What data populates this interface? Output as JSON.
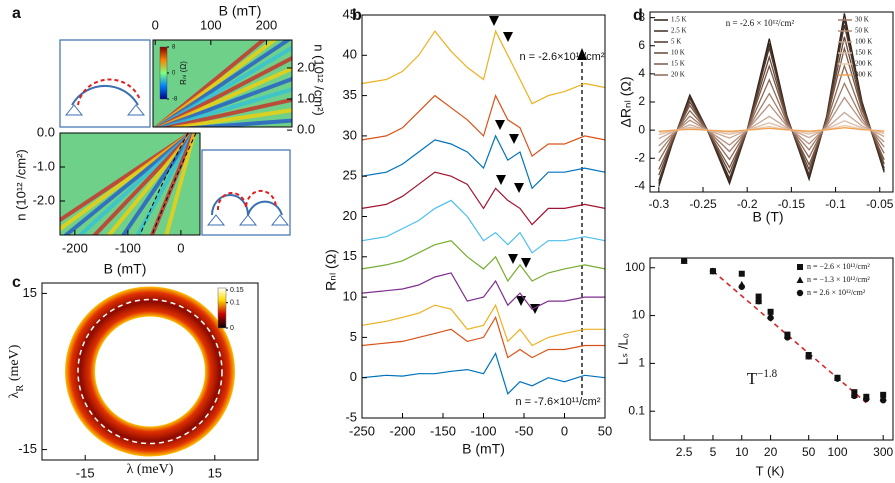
{
  "chart_data": [
    {
      "type": "heatmap",
      "panel_label": "a",
      "top": {
        "xlabel": "B (mT)",
        "xlim": [
          -4,
          246
        ],
        "xticks": [
          0,
          100,
          200
        ],
        "ylim": [
          0.1,
          2.9
        ],
        "yticks": [
          {
            "value": 0,
            "label": "0.0"
          },
          {
            "value": 1,
            "label": "1.0"
          },
          {
            "value": 2,
            "label": "2.0"
          }
        ],
        "ylabel": "n (10¹² /cm²)"
      },
      "bottom": {
        "xlabel": "B (mT)",
        "xlim": [
          -228,
          36
        ],
        "xticks": [
          -200,
          -100,
          0
        ],
        "ylim": [
          -3,
          0
        ],
        "yticks": [
          {
            "value": 0,
            "label": "0.0"
          },
          {
            "value": -1,
            "label": "-1.0"
          },
          {
            "value": -2,
            "label": "-2.0"
          }
        ],
        "ylabel": "n (10¹² /cm²)"
      },
      "colorbar_label": "Rₙₗ (Ω)",
      "colorbar_lim": [
        -8,
        8
      ],
      "colorbar_ticks": [
        8,
        0,
        -8
      ]
    },
    {
      "type": "line",
      "panel_label": "b",
      "xlabel": "B (mT)",
      "ylabel": "Rₙₗ (Ω)",
      "xlim": [
        -250,
        50
      ],
      "xticks": [
        -250,
        -200,
        -150,
        -100,
        -50,
        0,
        50
      ],
      "ylim": [
        -5,
        45
      ],
      "yticks": [
        -5,
        0,
        5,
        10,
        15,
        20,
        25,
        30,
        35,
        40,
        45
      ],
      "annotations": [
        "n = -2.6×10¹²/cm²",
        "n = -7.6×10¹¹/cm²"
      ],
      "x": [
        -250,
        -220,
        -200,
        -180,
        -160,
        -140,
        -120,
        -100,
        -85,
        -70,
        -55,
        -40,
        -20,
        0,
        25,
        50
      ],
      "series": [
        {
          "color": "#0072bd",
          "values": [
            0,
            0.3,
            0.2,
            0.5,
            0.5,
            0.8,
            1,
            0.5,
            3,
            -2,
            -0.5,
            -1,
            0,
            -0.5,
            0.3,
            0
          ]
        },
        {
          "color": "#d95319",
          "values": [
            4,
            4.3,
            4.5,
            5,
            5.5,
            6,
            4.5,
            5,
            7.5,
            2.5,
            3.5,
            2.5,
            3.5,
            3.5,
            4,
            4
          ]
        },
        {
          "color": "#edb120",
          "values": [
            6.5,
            7,
            7.5,
            8,
            9,
            8.5,
            6,
            6.5,
            9,
            4.5,
            6,
            4,
            5,
            5.5,
            6,
            6
          ]
        },
        {
          "color": "#7e2f8e",
          "values": [
            10.5,
            10.8,
            11,
            11.5,
            12.5,
            13,
            9.5,
            10,
            12,
            9,
            10.5,
            8.5,
            9.5,
            9.5,
            10,
            10
          ]
        },
        {
          "color": "#77ac30",
          "values": [
            13.5,
            14,
            14.5,
            15.5,
            16.5,
            17,
            15,
            13.5,
            15,
            12,
            14,
            12,
            13,
            13.5,
            14,
            13.5
          ]
        },
        {
          "color": "#4dbeee",
          "values": [
            17,
            17.5,
            18.5,
            19.5,
            21,
            22,
            20,
            17,
            18,
            16.5,
            18,
            15.5,
            17,
            17,
            17.5,
            17
          ]
        },
        {
          "color": "#a2142f",
          "values": [
            21,
            21.5,
            22.5,
            24,
            25.5,
            25,
            24,
            21,
            23.5,
            22,
            21,
            19,
            21,
            21,
            21.5,
            21
          ]
        },
        {
          "color": "#0072bd",
          "values": [
            25,
            25.5,
            26.5,
            28,
            29.5,
            29,
            28,
            26,
            30,
            27,
            28,
            23.5,
            25.5,
            25.5,
            26,
            25.5
          ]
        },
        {
          "color": "#d95319",
          "values": [
            29.5,
            30,
            31,
            33,
            35,
            33.5,
            32,
            30,
            35,
            32,
            31,
            27.5,
            29,
            29,
            30,
            29.5
          ]
        },
        {
          "color": "#edb120",
          "values": [
            36.5,
            37,
            38,
            40,
            43,
            40.5,
            38.5,
            37,
            43,
            40,
            37,
            34,
            35,
            35.5,
            36.5,
            36
          ]
        }
      ]
    },
    {
      "type": "heatmap",
      "panel_label": "c",
      "xlabel": "λ (meV)",
      "ylabel": {
        "text": "λ",
        "sub": "R",
        "tail": " (meV)"
      },
      "xlim": [
        -25,
        25
      ],
      "xticks": [
        -15,
        15
      ],
      "ylim": [
        -17,
        17
      ],
      "yticks": [
        -15,
        15
      ],
      "colorbar_lim": [
        0,
        0.15
      ],
      "colorbar_ticks": [
        0.15,
        0.1,
        0
      ]
    },
    {
      "type": "line",
      "panel_label": "d",
      "xlabel": "B (T)",
      "ylabel": "ΔRₙₗ (Ω)",
      "annotation": "n = -2.6 × 10¹²/cm²",
      "xlim": [
        -0.31,
        -0.035
      ],
      "xticks": [
        -0.3,
        -0.25,
        -0.2,
        -0.15,
        -0.1,
        -0.05
      ],
      "ylim": [
        -4.4,
        8.4
      ],
      "yticks": [
        -4,
        -2,
        0,
        2,
        4,
        6,
        8
      ],
      "x": [
        -0.3,
        -0.285,
        -0.265,
        -0.245,
        -0.22,
        -0.2,
        -0.175,
        -0.155,
        -0.13,
        -0.11,
        -0.09,
        -0.07,
        -0.045
      ],
      "series": [
        {
          "name": "1.5 K",
          "color": "#2e2119",
          "values": [
            -4,
            -1,
            2.5,
            0,
            -3.8,
            0,
            6.5,
            1,
            -3.5,
            1,
            8.3,
            2,
            -3
          ]
        },
        {
          "name": "2.5 K",
          "color": "#3f2e23",
          "values": [
            -3.8,
            -0.95,
            2.38,
            0,
            -3.61,
            0,
            6.18,
            0.95,
            -3.33,
            0.95,
            7.89,
            1.9,
            -2.85
          ]
        },
        {
          "name": "5 K",
          "color": "#51392c",
          "values": [
            -3.6,
            -0.9,
            2.25,
            0,
            -3.42,
            0,
            5.85,
            0.9,
            -3.15,
            0.9,
            7.47,
            1.8,
            -2.7
          ]
        },
        {
          "name": "10 K",
          "color": "#654737",
          "values": [
            -3.2,
            -0.8,
            2,
            0,
            -3.04,
            0,
            5.2,
            0.8,
            -2.8,
            0.8,
            6.64,
            1.6,
            -2.4
          ]
        },
        {
          "name": "15 K",
          "color": "#7a5845",
          "values": [
            -2.8,
            -0.7,
            1.75,
            0,
            -2.66,
            0,
            4.55,
            0.7,
            -2.45,
            0.7,
            5.81,
            1.4,
            -2.1
          ]
        },
        {
          "name": "20 K",
          "color": "#8d6955",
          "values": [
            -2.2,
            -0.55,
            1.38,
            0,
            -2.09,
            0,
            3.58,
            0.55,
            -1.93,
            0.55,
            4.57,
            1.1,
            -1.65
          ]
        },
        {
          "name": "30 K",
          "color": "#a27d6a",
          "values": [
            -1.6,
            -0.4,
            1,
            0,
            -1.52,
            0,
            2.6,
            0.4,
            -1.4,
            0.4,
            3.32,
            0.8,
            -1.2
          ]
        },
        {
          "name": "50 K",
          "color": "#b6917f",
          "values": [
            -1.12,
            -0.28,
            0.7,
            0,
            -1.06,
            0,
            1.82,
            0.28,
            -0.98,
            0.28,
            2.32,
            0.56,
            -0.84
          ]
        },
        {
          "name": "100 K",
          "color": "#c9a794",
          "values": [
            -0.6,
            -0.15,
            0.38,
            0,
            -0.57,
            0,
            0.98,
            0.15,
            -0.53,
            0.15,
            1.25,
            0.3,
            -0.45
          ]
        },
        {
          "name": "150 K",
          "color": "#dbbca8",
          "values": [
            -0.32,
            -0.08,
            0.2,
            0,
            -0.3,
            0,
            0.52,
            0.08,
            -0.28,
            0.08,
            0.66,
            0.16,
            -0.24
          ]
        },
        {
          "name": "200 K",
          "color": "#e9c9a8",
          "values": [
            -0.16,
            -0.04,
            0.1,
            0,
            -0.15,
            0,
            0.26,
            0.04,
            -0.14,
            0.04,
            0.33,
            0.08,
            -0.12
          ]
        },
        {
          "name": "300 K",
          "color": "#f0a050",
          "values": [
            -0.08,
            -0.02,
            0.05,
            0,
            -0.08,
            0,
            0.13,
            0.02,
            -0.07,
            0.02,
            0.17,
            0.04,
            -0.06
          ]
        }
      ],
      "legend": "top"
    },
    {
      "type": "scatter",
      "xlabel": "T (K)",
      "ylabel": "Lₛ /L₀",
      "log_x": true,
      "log_y": true,
      "xlim": [
        1.1,
        380
      ],
      "xticks": [
        2.5,
        5,
        10,
        20,
        50,
        100,
        300
      ],
      "ylim": [
        0.025,
        160
      ],
      "yticks": [
        0.1,
        1,
        10,
        100
      ],
      "x": [
        2.5,
        5,
        10,
        15,
        20,
        30,
        50,
        100,
        150,
        200,
        300
      ],
      "series": [
        {
          "name": "n = −2.6 × 10¹²/cm²",
          "marker": "square",
          "color": "#111",
          "values": [
            140,
            85,
            75,
            25,
            12,
            4,
            1.5,
            0.5,
            0.25,
            0.2,
            0.22
          ]
        },
        {
          "name": "n = −1.3 × 10¹²/cm²",
          "marker": "triangle",
          "color": "#111",
          "values": [
            140,
            85,
            45,
            20,
            10,
            3.8,
            1.4,
            0.5,
            0.22,
            0.2,
            0.19
          ]
        },
        {
          "name": "n = 2.6 × 10¹²/cm²",
          "marker": "circle",
          "color": "#111",
          "values": [
            140,
            85,
            40,
            20,
            9,
            3.5,
            1.4,
            0.48,
            0.21,
            0.18,
            0.17
          ]
        }
      ],
      "fit": {
        "x": [
          5,
          200
        ],
        "y": [
          85,
          0.15
        ],
        "color": "#d62728"
      },
      "annotation": {
        "text": "T",
        "sup": "−1.8"
      },
      "legend": "top-right"
    }
  ]
}
